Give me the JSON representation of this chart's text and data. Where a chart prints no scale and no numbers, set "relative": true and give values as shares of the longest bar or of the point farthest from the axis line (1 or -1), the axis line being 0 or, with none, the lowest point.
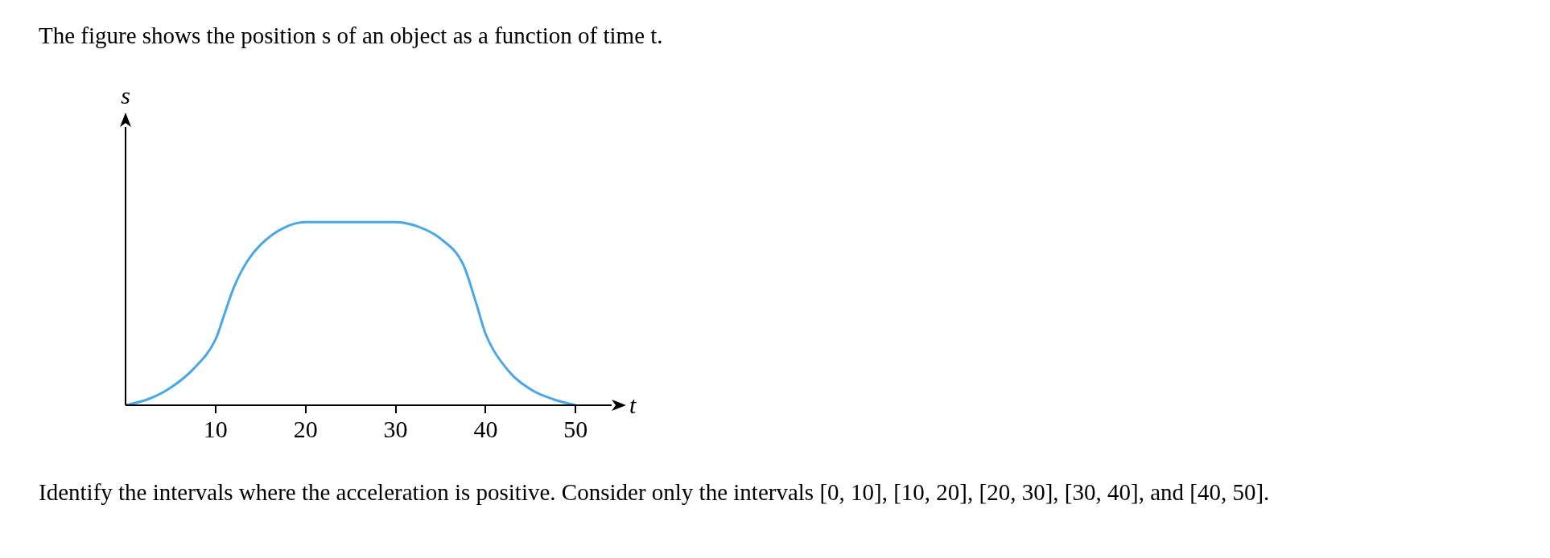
{
  "chart_data": {
    "type": "line",
    "title": "The figure shows the position s of an object as a function of time t.",
    "xlabel": "t",
    "ylabel": "s",
    "relative": true,
    "x": [
      0,
      2.5,
      5,
      7.5,
      10,
      11,
      12,
      13.5,
      15,
      17.5,
      20,
      21,
      30,
      32.5,
      35,
      37.5,
      39,
      40,
      42.5,
      45,
      47.5,
      50
    ],
    "series": [
      {
        "color": "#4aa8e8",
        "values": [
          0,
          0.033,
          0.096,
          0.196,
          0.36,
          0.5,
          0.64,
          0.785,
          0.877,
          0.967,
          1,
          1,
          1,
          0.976,
          0.91,
          0.77,
          0.55,
          0.39,
          0.19,
          0.087,
          0.033,
          0
        ]
      }
    ],
    "xlim": [
      0,
      54
    ],
    "xticks": [
      10,
      20,
      30,
      40,
      50
    ],
    "grid": false,
    "legend": false,
    "marker": "none",
    "line_style": "solid",
    "annotations": [
      "Identify the intervals where the acceleration is positive. Consider only the intervals [0, 10], [10, 20], [20, 30], [30, 40], and [40, 50]."
    ]
  }
}
